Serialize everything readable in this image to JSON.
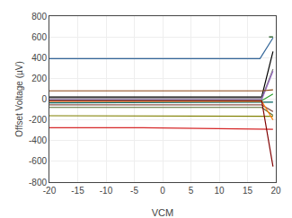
{
  "chart_data": {
    "type": "line",
    "x_label": "VCM",
    "y_label": "Offset Voltage (µV)",
    "xlim": [
      -20,
      20
    ],
    "ylim": [
      -800,
      800
    ],
    "xticks": [
      -20,
      -15,
      -10,
      -5,
      0,
      5,
      10,
      15,
      20
    ],
    "yticks": [
      -800,
      -600,
      -400,
      -200,
      0,
      200,
      400,
      600,
      800
    ],
    "grid": true,
    "series": [
      {
        "color": "#336699",
        "x": [
          -20,
          17.2,
          19.5
        ],
        "values": [
          390,
          390,
          590
        ]
      },
      {
        "color": "#004000",
        "x": [
          18.8,
          18.8,
          19.5
        ],
        "values": [
          600,
          600,
          600
        ]
      },
      {
        "color": "#000000",
        "x": [
          -20,
          17.5,
          19.5
        ],
        "values": [
          20,
          20,
          460
        ]
      },
      {
        "color": "#7f7f7f",
        "x": [
          -20,
          17.5,
          19.5
        ],
        "values": [
          5,
          5,
          290
        ]
      },
      {
        "color": "#9467bd",
        "x": [
          -20,
          17.5,
          19.5
        ],
        "values": [
          -5,
          -5,
          270
        ]
      },
      {
        "color": "#8b4513",
        "x": [
          -20,
          17.5,
          19.5
        ],
        "values": [
          80,
          80,
          90
        ]
      },
      {
        "color": "#2ca02c",
        "x": [
          -20,
          17.5,
          19.5
        ],
        "values": [
          -15,
          -15,
          50
        ]
      },
      {
        "color": "#006060",
        "x": [
          -20,
          13.0,
          19.5
        ],
        "values": [
          -35,
          -35,
          -30
        ]
      },
      {
        "color": "#8c564b",
        "x": [
          -20,
          17.5,
          19.5
        ],
        "values": [
          -55,
          -55,
          -120
        ]
      },
      {
        "color": "#556b2f",
        "x": [
          -20,
          17.5,
          19.5
        ],
        "values": [
          -80,
          -80,
          -155
        ]
      },
      {
        "color": "#808000",
        "x": [
          -20,
          17.5,
          19.5
        ],
        "values": [
          -160,
          -160,
          -165
        ]
      },
      {
        "color": "#ff7f0e",
        "x": [
          -20,
          17.5,
          19.5
        ],
        "values": [
          -20,
          -20,
          -200
        ]
      },
      {
        "color": "#d62728",
        "x": [
          -20,
          -3.5,
          19.5
        ],
        "values": [
          -275,
          -275,
          -290
        ]
      },
      {
        "color": "#800000",
        "x": [
          -20,
          17.5,
          19.5
        ],
        "values": [
          -15,
          -15,
          -650
        ]
      }
    ]
  }
}
